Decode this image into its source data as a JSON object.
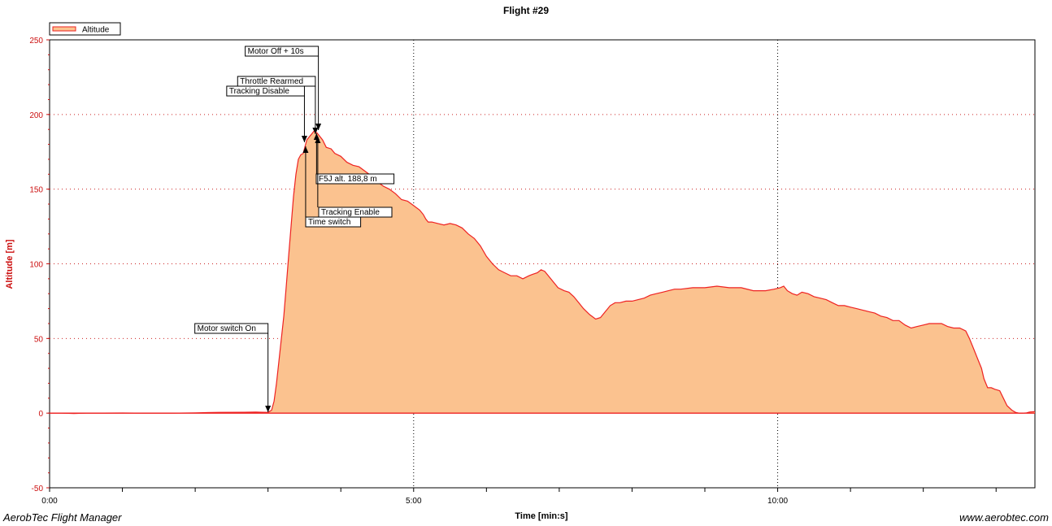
{
  "chart_data": {
    "type": "area",
    "title": "Flight #29",
    "xlabel": "Time [min:s]",
    "ylabel": "Altitude [m]",
    "x_unit": "seconds",
    "xlim": [
      0,
      812
    ],
    "ylim": [
      -50,
      250
    ],
    "x_ticks": [
      {
        "value": 0,
        "label": "0:00"
      },
      {
        "value": 300,
        "label": "5:00"
      },
      {
        "value": 600,
        "label": "10:00"
      }
    ],
    "y_ticks": [
      -50,
      0,
      50,
      100,
      150,
      200,
      250
    ],
    "grid": true,
    "legend": "top-left",
    "series": [
      {
        "name": "Altitude",
        "line_color": "#ee2222",
        "fill_color": "#fbc28f",
        "points": [
          [
            0,
            0
          ],
          [
            10,
            0
          ],
          [
            20,
            -0.3
          ],
          [
            30,
            0
          ],
          [
            40,
            0
          ],
          [
            60,
            0.1
          ],
          [
            80,
            0
          ],
          [
            100,
            0
          ],
          [
            120,
            0.2
          ],
          [
            140,
            0.5
          ],
          [
            160,
            0.6
          ],
          [
            180,
            0.5
          ],
          [
            170,
            0.7
          ],
          [
            175,
            0.6
          ],
          [
            181,
            1
          ],
          [
            183,
            2
          ],
          [
            185,
            8
          ],
          [
            187,
            20
          ],
          [
            189,
            35
          ],
          [
            191,
            50
          ],
          [
            193,
            65
          ],
          [
            195,
            85
          ],
          [
            197,
            105
          ],
          [
            199,
            125
          ],
          [
            201,
            145
          ],
          [
            203,
            160
          ],
          [
            205,
            170
          ],
          [
            207,
            173
          ],
          [
            209,
            174
          ],
          [
            210,
            177
          ],
          [
            211,
            180
          ],
          [
            212,
            183
          ],
          [
            214,
            185
          ],
          [
            216,
            187
          ],
          [
            218,
            189
          ],
          [
            220,
            188
          ],
          [
            222,
            186
          ],
          [
            225,
            183
          ],
          [
            228,
            178
          ],
          [
            232,
            177
          ],
          [
            235,
            174
          ],
          [
            240,
            172
          ],
          [
            245,
            168
          ],
          [
            250,
            166
          ],
          [
            255,
            165
          ],
          [
            260,
            162
          ],
          [
            265,
            159
          ],
          [
            270,
            155
          ],
          [
            275,
            152
          ],
          [
            280,
            150
          ],
          [
            285,
            147
          ],
          [
            290,
            143
          ],
          [
            295,
            142
          ],
          [
            300,
            139
          ],
          [
            305,
            136
          ],
          [
            308,
            133
          ],
          [
            310,
            130
          ],
          [
            312,
            128
          ],
          [
            315,
            128
          ],
          [
            320,
            127
          ],
          [
            325,
            126
          ],
          [
            330,
            127
          ],
          [
            335,
            126
          ],
          [
            340,
            124
          ],
          [
            345,
            120
          ],
          [
            350,
            117
          ],
          [
            355,
            112
          ],
          [
            360,
            105
          ],
          [
            365,
            100
          ],
          [
            370,
            96
          ],
          [
            375,
            94
          ],
          [
            380,
            92
          ],
          [
            385,
            92
          ],
          [
            390,
            90
          ],
          [
            395,
            92
          ],
          [
            398,
            93
          ],
          [
            402,
            94
          ],
          [
            405,
            96
          ],
          [
            408,
            95
          ],
          [
            411,
            92
          ],
          [
            415,
            88
          ],
          [
            419,
            84
          ],
          [
            424,
            82
          ],
          [
            428,
            81
          ],
          [
            432,
            78
          ],
          [
            436,
            74
          ],
          [
            440,
            70
          ],
          [
            445,
            66
          ],
          [
            450,
            63
          ],
          [
            454,
            64
          ],
          [
            458,
            68
          ],
          [
            462,
            72
          ],
          [
            466,
            74
          ],
          [
            470,
            74
          ],
          [
            475,
            75
          ],
          [
            480,
            75
          ],
          [
            485,
            76
          ],
          [
            490,
            77
          ],
          [
            495,
            79
          ],
          [
            500,
            80
          ],
          [
            505,
            81
          ],
          [
            510,
            82
          ],
          [
            515,
            83
          ],
          [
            520,
            83
          ],
          [
            530,
            84
          ],
          [
            540,
            84
          ],
          [
            550,
            85
          ],
          [
            560,
            84
          ],
          [
            570,
            84
          ],
          [
            580,
            82
          ],
          [
            590,
            82
          ],
          [
            597,
            83
          ],
          [
            602,
            84
          ],
          [
            605,
            85
          ],
          [
            608,
            82
          ],
          [
            612,
            80
          ],
          [
            616,
            79
          ],
          [
            620,
            81
          ],
          [
            625,
            80
          ],
          [
            630,
            78
          ],
          [
            635,
            77
          ],
          [
            640,
            76
          ],
          [
            645,
            74
          ],
          [
            650,
            72
          ],
          [
            655,
            72
          ],
          [
            660,
            71
          ],
          [
            665,
            70
          ],
          [
            670,
            69
          ],
          [
            675,
            68
          ],
          [
            680,
            67
          ],
          [
            685,
            65
          ],
          [
            690,
            64
          ],
          [
            695,
            62
          ],
          [
            700,
            62
          ],
          [
            705,
            59
          ],
          [
            710,
            57
          ],
          [
            715,
            58
          ],
          [
            720,
            59
          ],
          [
            725,
            60
          ],
          [
            730,
            60
          ],
          [
            735,
            60
          ],
          [
            740,
            58
          ],
          [
            745,
            57
          ],
          [
            750,
            57
          ],
          [
            755,
            55
          ],
          [
            758,
            50
          ],
          [
            762,
            42
          ],
          [
            765,
            36
          ],
          [
            768,
            30
          ],
          [
            770,
            23
          ],
          [
            773,
            17
          ],
          [
            776,
            17
          ],
          [
            779,
            16
          ],
          [
            783,
            15
          ],
          [
            786,
            10
          ],
          [
            789,
            5
          ],
          [
            793,
            2
          ],
          [
            796,
            0.5
          ],
          [
            799,
            0
          ],
          [
            802,
            0
          ],
          [
            805,
            0.2
          ],
          [
            808,
            0.8
          ],
          [
            812,
            1
          ]
        ]
      }
    ],
    "annotations": [
      {
        "label": "Motor switch On",
        "x": 180
      },
      {
        "label": "Tracking Disable",
        "x": 210
      },
      {
        "label": "Time switch",
        "x": 211
      },
      {
        "label": "Throttle Rearmed",
        "x": 219
      },
      {
        "label": "F5J alt. 188,8 m",
        "x": 220
      },
      {
        "label": "Tracking Enable",
        "x": 221
      },
      {
        "label": "Motor Off + 10s",
        "x": 221.5
      }
    ]
  },
  "footer": {
    "left": "AerobTec Flight Manager",
    "right": "www.aerobtec.com"
  }
}
